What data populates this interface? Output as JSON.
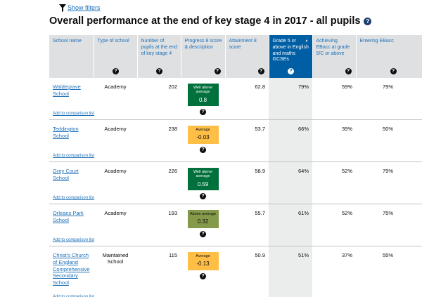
{
  "filters": {
    "label": "Show filters",
    "icon": "filter-icon"
  },
  "title": "Overall performance at the end of key stage 4 in 2017 - all pupils",
  "help_glyph": "?",
  "columns": [
    {
      "label": "School name"
    },
    {
      "label": "Type of school"
    },
    {
      "label": "Number of pupils at the end of key stage 4"
    },
    {
      "label": "Progress 8 score & description"
    },
    {
      "label": "Attainment 8 score"
    },
    {
      "label": "Grade 5 or above in English and maths GCSEs",
      "sorted": "ascending"
    },
    {
      "label": "Achieving EBacc at grade 5/C or above"
    },
    {
      "label": "Entering EBacc"
    }
  ],
  "compare_label": "Add to comparison list",
  "rows": [
    {
      "name": "Waldegrave School",
      "type": "Academy",
      "pupils": "202",
      "p8_desc": "Well above average",
      "p8_score": "0.8",
      "p8_bg": "#00703c",
      "p8_fg": "#ffffff",
      "att8": "62.8",
      "grade5": "79%",
      "ebacc_achieve": "59%",
      "ebacc_enter": "79%"
    },
    {
      "name": "Teddington School",
      "type": "Academy",
      "pupils": "238",
      "p8_desc": "Average",
      "p8_score": "-0.03",
      "p8_bg": "#ffbf47",
      "p8_fg": "#0b0c0c",
      "att8": "53.7",
      "grade5": "66%",
      "ebacc_achieve": "39%",
      "ebacc_enter": "50%"
    },
    {
      "name": "Grey Court School",
      "type": "Academy",
      "pupils": "226",
      "p8_desc": "Well above average",
      "p8_score": "0.59",
      "p8_bg": "#00703c",
      "p8_fg": "#ffffff",
      "att8": "58.9",
      "grade5": "64%",
      "ebacc_achieve": "52%",
      "ebacc_enter": "79%"
    },
    {
      "name": "Orleans Park School",
      "type": "Academy",
      "pupils": "193",
      "p8_desc": "Above average",
      "p8_score": "0.32",
      "p8_bg": "#85994b",
      "p8_fg": "#0b0c0c",
      "att8": "55.7",
      "grade5": "61%",
      "ebacc_achieve": "52%",
      "ebacc_enter": "75%"
    },
    {
      "name": "Christ's Church of England Comprehensive Secondary School",
      "type": "Maintained School",
      "pupils": "115",
      "p8_desc": "Average",
      "p8_score": "-0.13",
      "p8_bg": "#ffbf47",
      "p8_fg": "#0b0c0c",
      "att8": "50.9",
      "grade5": "51%",
      "ebacc_achieve": "37%",
      "ebacc_enter": "55%"
    }
  ]
}
